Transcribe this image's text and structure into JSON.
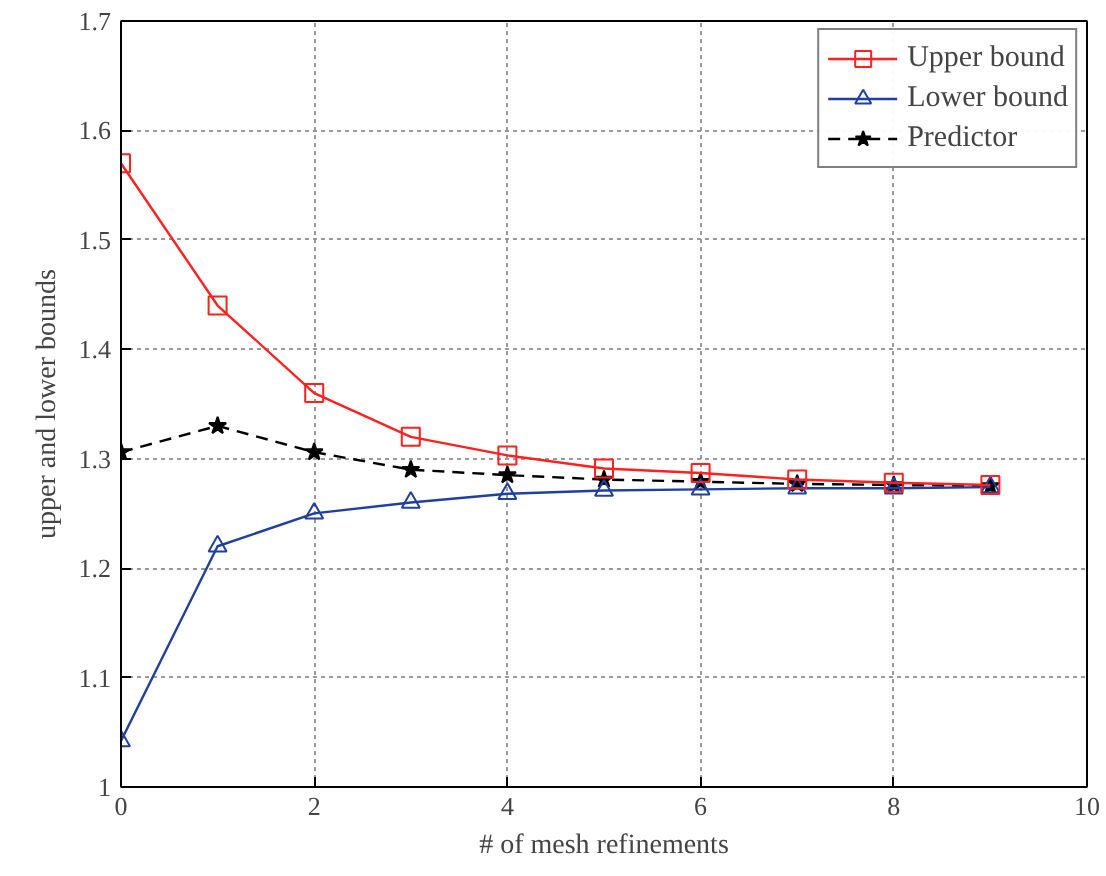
{
  "chart_data": {
    "type": "line",
    "xlabel": "# of mesh refinements",
    "ylabel": "upper and lower bounds",
    "x": [
      0,
      1,
      2,
      3,
      4,
      5,
      6,
      7,
      8,
      9
    ],
    "series": [
      {
        "name": "Upper bound",
        "color": "#ff2020",
        "marker": "square",
        "line_style": "solid",
        "values": [
          1.57,
          1.44,
          1.36,
          1.32,
          1.303,
          1.291,
          1.287,
          1.281,
          1.278,
          1.276
        ]
      },
      {
        "name": "Lower bound",
        "color": "#2040a0",
        "marker": "triangle",
        "line_style": "solid",
        "values": [
          1.042,
          1.22,
          1.25,
          1.26,
          1.268,
          1.271,
          1.272,
          1.273,
          1.273,
          1.274
        ]
      },
      {
        "name": "Predictor",
        "color": "#000000",
        "marker": "star",
        "line_style": "dashed",
        "values": [
          1.306,
          1.33,
          1.306,
          1.29,
          1.285,
          1.281,
          1.279,
          1.277,
          1.276,
          1.275
        ]
      }
    ],
    "xlim": [
      0,
      10
    ],
    "xticks": [
      0,
      2,
      4,
      6,
      8,
      10
    ],
    "ylim": [
      1,
      1.7
    ],
    "yticks": [
      1,
      1.1,
      1.2,
      1.3,
      1.4,
      1.5,
      1.6,
      1.7
    ],
    "grid": true,
    "legend": "top right"
  }
}
